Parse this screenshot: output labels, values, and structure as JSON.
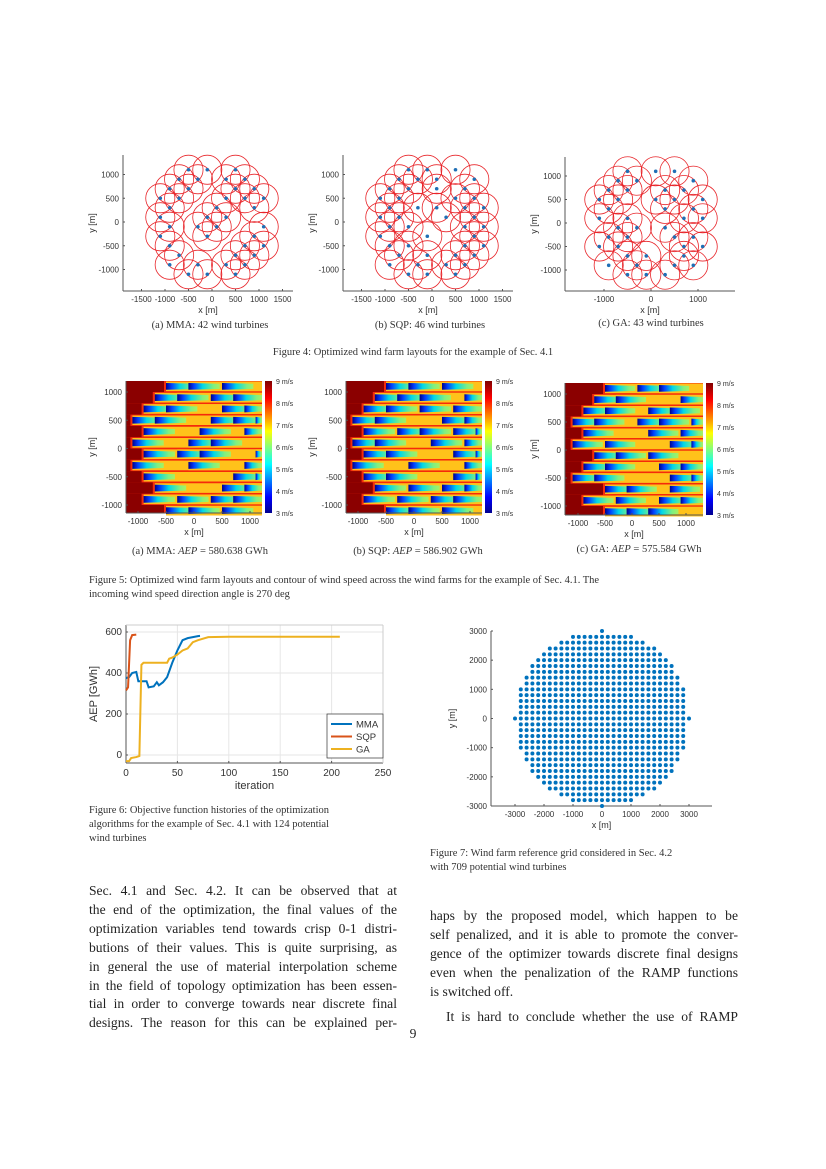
{
  "figure4": {
    "caption": "Figure 4: Optimized wind farm layouts for the example of Sec. 4.1",
    "xlabel": "x [m]",
    "ylabel": "y [m]",
    "panels": [
      {
        "subcaption": "(a) MMA: 42 wind turbines",
        "xticks": [
          -1500,
          -1000,
          -500,
          0,
          500,
          1000,
          1500
        ],
        "yticks": [
          1000,
          500,
          0,
          -500,
          -1000
        ],
        "turbines": [
          [
            -500,
            1100
          ],
          [
            -100,
            1100
          ],
          [
            500,
            1100
          ],
          [
            -700,
            900
          ],
          [
            -300,
            900
          ],
          [
            300,
            900
          ],
          [
            700,
            900
          ],
          [
            -900,
            700
          ],
          [
            -500,
            700
          ],
          [
            500,
            700
          ],
          [
            900,
            700
          ],
          [
            -1100,
            500
          ],
          [
            -700,
            500
          ],
          [
            300,
            500
          ],
          [
            700,
            500
          ],
          [
            1100,
            500
          ],
          [
            -900,
            300
          ],
          [
            100,
            300
          ],
          [
            900,
            300
          ],
          [
            -1100,
            100
          ],
          [
            -100,
            100
          ],
          [
            300,
            100
          ],
          [
            -900,
            -100
          ],
          [
            -300,
            -100
          ],
          [
            100,
            -100
          ],
          [
            1100,
            -100
          ],
          [
            -1100,
            -300
          ],
          [
            -100,
            -300
          ],
          [
            900,
            -300
          ],
          [
            -900,
            -500
          ],
          [
            700,
            -500
          ],
          [
            1100,
            -500
          ],
          [
            -700,
            -700
          ],
          [
            500,
            -700
          ],
          [
            900,
            -700
          ],
          [
            -900,
            -900
          ],
          [
            -300,
            -900
          ],
          [
            300,
            -900
          ],
          [
            700,
            -900
          ],
          [
            -500,
            -1100
          ],
          [
            -100,
            -1100
          ],
          [
            500,
            -1100
          ]
        ]
      },
      {
        "subcaption": "(b) SQP: 46 wind turbines",
        "xticks": [
          -1500,
          -1000,
          -500,
          0,
          500,
          1000,
          1500
        ],
        "yticks": [
          1000,
          500,
          0,
          -500,
          -1000
        ],
        "turbines": [
          [
            -500,
            1100
          ],
          [
            -100,
            1100
          ],
          [
            500,
            1100
          ],
          [
            -700,
            900
          ],
          [
            -300,
            900
          ],
          [
            100,
            900
          ],
          [
            900,
            900
          ],
          [
            -900,
            700
          ],
          [
            -500,
            700
          ],
          [
            100,
            700
          ],
          [
            700,
            700
          ],
          [
            -1100,
            500
          ],
          [
            -700,
            500
          ],
          [
            500,
            500
          ],
          [
            900,
            500
          ],
          [
            -900,
            300
          ],
          [
            -300,
            300
          ],
          [
            100,
            300
          ],
          [
            700,
            300
          ],
          [
            1100,
            300
          ],
          [
            -1100,
            100
          ],
          [
            -700,
            100
          ],
          [
            300,
            100
          ],
          [
            900,
            100
          ],
          [
            -900,
            -100
          ],
          [
            -500,
            -100
          ],
          [
            700,
            -100
          ],
          [
            1100,
            -100
          ],
          [
            -1100,
            -300
          ],
          [
            -100,
            -300
          ],
          [
            900,
            -300
          ],
          [
            -900,
            -500
          ],
          [
            -500,
            -500
          ],
          [
            700,
            -500
          ],
          [
            1100,
            -500
          ],
          [
            -700,
            -700
          ],
          [
            -100,
            -700
          ],
          [
            500,
            -700
          ],
          [
            900,
            -700
          ],
          [
            -900,
            -900
          ],
          [
            -300,
            -900
          ],
          [
            300,
            -900
          ],
          [
            700,
            -900
          ],
          [
            -500,
            -1100
          ],
          [
            -100,
            -1100
          ],
          [
            500,
            -1100
          ]
        ]
      },
      {
        "subcaption": "(c) GA: 43 wind turbines",
        "xticks": [
          -1000,
          0,
          1000
        ],
        "yticks": [
          1000,
          500,
          0,
          -500,
          -1000
        ],
        "turbines": [
          [
            -500,
            1100
          ],
          [
            100,
            1100
          ],
          [
            500,
            1100
          ],
          [
            -700,
            900
          ],
          [
            -300,
            900
          ],
          [
            900,
            900
          ],
          [
            -900,
            700
          ],
          [
            -500,
            700
          ],
          [
            300,
            700
          ],
          [
            700,
            700
          ],
          [
            -1100,
            500
          ],
          [
            -700,
            500
          ],
          [
            100,
            500
          ],
          [
            500,
            500
          ],
          [
            1100,
            500
          ],
          [
            -900,
            300
          ],
          [
            300,
            300
          ],
          [
            900,
            300
          ],
          [
            -1100,
            100
          ],
          [
            -500,
            100
          ],
          [
            700,
            100
          ],
          [
            1100,
            100
          ],
          [
            -700,
            -100
          ],
          [
            -300,
            -100
          ],
          [
            300,
            -100
          ],
          [
            -900,
            -300
          ],
          [
            -500,
            -300
          ],
          [
            500,
            -300
          ],
          [
            900,
            -300
          ],
          [
            -1100,
            -500
          ],
          [
            -700,
            -500
          ],
          [
            700,
            -500
          ],
          [
            1100,
            -500
          ],
          [
            -500,
            -700
          ],
          [
            -100,
            -700
          ],
          [
            700,
            -700
          ],
          [
            -900,
            -900
          ],
          [
            -300,
            -900
          ],
          [
            500,
            -900
          ],
          [
            900,
            -900
          ],
          [
            -500,
            -1100
          ],
          [
            -100,
            -1100
          ],
          [
            300,
            -1100
          ]
        ]
      }
    ]
  },
  "figure5": {
    "caption_lines": [
      "Figure 5: Optimized wind farm layouts and contour of wind speed across the wind farms for the example of Sec. 4.1. The",
      "incoming wind speed direction angle is 270 deg"
    ],
    "xlabel": "x [m]",
    "ylabel": "y [m]",
    "xticks": [
      -1000,
      -500,
      0,
      500,
      1000
    ],
    "yticks": [
      1000,
      500,
      0,
      -500,
      -1000
    ],
    "colorbar_labels": [
      "9 m/s",
      "8 m/s",
      "7 m/s",
      "6 m/s",
      "5 m/s",
      "4 m/s",
      "3 m/s"
    ],
    "colorbar_range": [
      3,
      9
    ],
    "colormap": [
      "#00008f",
      "#0000ff",
      "#00ffff",
      "#ffff00",
      "#ff0000",
      "#800000"
    ],
    "panels": [
      {
        "prefix": "(a) MMA:",
        "var": "AEP",
        "value": "= 580.638 GWh"
      },
      {
        "prefix": "(b) SQP:",
        "var": "AEP",
        "value": "= 586.902 GWh"
      },
      {
        "prefix": "(c) GA:",
        "var": "AEP",
        "value": "= 575.584 GWh"
      }
    ]
  },
  "chart_data": [
    {
      "type": "line",
      "title": "",
      "xlabel": "iteration",
      "ylabel": "AEP [GWh]",
      "xlim": [
        0,
        250
      ],
      "ylim": [
        -40,
        610
      ],
      "xticks": [
        0,
        50,
        100,
        150,
        200,
        250
      ],
      "yticks": [
        600,
        400,
        200,
        0
      ],
      "grid": true,
      "legend": "bottom-right",
      "series": [
        {
          "name": "MMA",
          "color": "#0072bd",
          "x": [
            0,
            3,
            6,
            10,
            12,
            20,
            22,
            27,
            30,
            32,
            36,
            40,
            45,
            50,
            55,
            60,
            65,
            70,
            72
          ],
          "y": [
            375,
            380,
            400,
            405,
            360,
            360,
            330,
            335,
            355,
            340,
            355,
            380,
            450,
            510,
            560,
            570,
            575,
            580,
            581
          ]
        },
        {
          "name": "SQP",
          "color": "#d95319",
          "x": [
            0,
            2,
            4,
            6,
            10
          ],
          "y": [
            315,
            330,
            560,
            585,
            587
          ]
        },
        {
          "name": "GA",
          "color": "#edb120",
          "x": [
            0,
            3,
            5,
            10,
            13,
            15,
            17,
            40,
            42,
            45,
            50,
            55,
            60,
            65,
            70,
            80,
            100,
            208
          ],
          "y": [
            -30,
            -30,
            -15,
            -10,
            -5,
            440,
            450,
            450,
            470,
            475,
            490,
            510,
            520,
            550,
            560,
            575,
            577,
            577
          ]
        }
      ]
    },
    {
      "type": "scatter",
      "title": "",
      "xlabel": "x [m]",
      "ylabel": "y [m]",
      "xlim": [
        -3800,
        3800
      ],
      "ylim": [
        -3000,
        3000
      ],
      "xticks": [
        -3000,
        -2000,
        -1000,
        0,
        1000,
        2000,
        3000
      ],
      "yticks": [
        3000,
        2000,
        1000,
        0,
        -1000,
        -2000,
        -3000
      ],
      "grid_spacing_m": 200,
      "radius_m": 3000,
      "color": "#0072bd"
    }
  ],
  "figure6": {
    "caption_lines": [
      "Figure 6: Objective function histories of the optimization",
      "algorithms for the example of Sec. 4.1 with 124 potential",
      "wind turbines"
    ]
  },
  "figure7": {
    "caption_lines": [
      "Figure 7: Wind farm reference grid considered in Sec. 4.2",
      "with 709 potential wind turbines"
    ]
  },
  "body": {
    "left": [
      "Sec. 4.1 and Sec. 4.2. It can be observed that at",
      "the end of the optimization, the final values of the",
      "optimization variables tend towards crisp 0-1 distri-",
      "butions of their values. This is quite surprising, as",
      "in general the use of material interpolation scheme",
      "in the field of topology optimization has been essen-",
      "tial in order to converge towards near discrete final",
      "designs. The reason for this can be explained per-"
    ],
    "right_p1": [
      "haps by the proposed model, which happen to be",
      "self penalized, and it is able to promote the conver-",
      "gence of the optimizer towards discrete final designs",
      "even when the penalization of the RAMP functions",
      "is switched off."
    ],
    "right_p2": [
      "It is hard to conclude whether the use of RAMP"
    ]
  },
  "page_number": "9"
}
